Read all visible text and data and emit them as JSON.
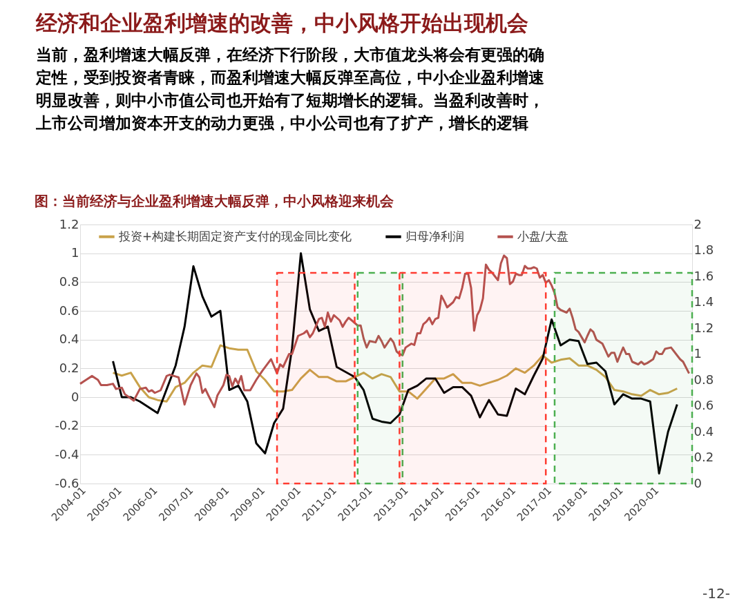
{
  "chart_data": {
    "type": "line",
    "title": "经济和企业盈利增速的改善，中小风格开始出现机会",
    "subtitle": "当前，盈利增速大幅反弹，在经济下行阶段，大市值龙头将会有更强的确定性，受到投资者青睐，而盈利增速大幅反弹至高位，中小企业盈利增速明显改善，则中小市值公司也开始有了短期增长的逻辑。当盈利改善时，上市公司增加资本开支的动力更强，中小公司也有了扩产，增长的逻辑",
    "annotations": [
      "图：当前经济与企业盈利增速大幅反弹，中小风格迎来机会",
      "-12-"
    ],
    "xlim": [
      "2004-01",
      "2021-02"
    ],
    "xticks": [
      "2004-01",
      "2005-01",
      "2006-01",
      "2007-01",
      "2008-01",
      "2009-01",
      "2010-01",
      "2011-01",
      "2012-01",
      "2013-01",
      "2014-01",
      "2015-01",
      "2016-01",
      "2017-01",
      "2018-01",
      "2019-01",
      "2020-01"
    ],
    "ylim": [
      -0.6,
      1.2
    ],
    "yticks": [
      -0.6,
      -0.4,
      -0.2,
      0,
      0.2,
      0.4,
      0.6,
      0.8,
      1,
      1.2
    ],
    "y2lim": [
      0,
      2
    ],
    "y2ticks": [
      0,
      0.2,
      0.4,
      0.6,
      0.8,
      1,
      1.2,
      1.4,
      1.6,
      1.8,
      2
    ],
    "grid": "y",
    "legend": "top",
    "bands": [
      {
        "axis": "x",
        "from": "2009-07",
        "to": "2011-09",
        "color": "#ff3b30"
      },
      {
        "axis": "x",
        "from": "2011-10",
        "to": "2013-01",
        "color": "#4caf50"
      },
      {
        "axis": "x",
        "from": "2012-12",
        "to": "2017-01",
        "color": "#ff3b30"
      },
      {
        "axis": "x",
        "from": "2017-04",
        "to": "2021-02",
        "color": "#4caf50"
      }
    ],
    "series": [
      {
        "name": "投资+构建长期固定资产支付的现金同比变化",
        "color": "#c9a24a",
        "x": [
          "2004-12",
          "2005-03",
          "2005-06",
          "2005-09",
          "2005-12",
          "2006-03",
          "2006-06",
          "2006-09",
          "2006-12",
          "2007-03",
          "2007-06",
          "2007-09",
          "2007-12",
          "2008-03",
          "2008-06",
          "2008-09",
          "2008-12",
          "2009-03",
          "2009-06",
          "2009-09",
          "2009-12",
          "2010-03",
          "2010-06",
          "2010-09",
          "2010-12",
          "2011-03",
          "2011-06",
          "2011-09",
          "2011-12",
          "2012-03",
          "2012-06",
          "2012-09",
          "2012-12",
          "2013-03",
          "2013-06",
          "2013-09",
          "2013-12",
          "2014-03",
          "2014-06",
          "2014-09",
          "2014-12",
          "2015-03",
          "2015-06",
          "2015-09",
          "2015-12",
          "2016-03",
          "2016-06",
          "2016-09",
          "2016-12",
          "2017-03",
          "2017-06",
          "2017-09",
          "2017-12",
          "2018-03",
          "2018-06",
          "2018-09",
          "2018-12",
          "2019-03",
          "2019-06",
          "2019-09",
          "2019-12",
          "2020-03",
          "2020-06",
          "2020-09"
        ],
        "values": [
          0.17,
          0.15,
          0.17,
          0.07,
          0.0,
          -0.02,
          -0.03,
          0.07,
          0.1,
          0.17,
          0.22,
          0.21,
          0.36,
          0.34,
          0.33,
          0.33,
          0.18,
          0.12,
          0.04,
          0.04,
          0.05,
          0.13,
          0.19,
          0.14,
          0.14,
          0.11,
          0.11,
          0.14,
          0.17,
          0.13,
          0.16,
          0.14,
          0.04,
          0.04,
          -0.01,
          0.06,
          0.13,
          0.13,
          0.16,
          0.1,
          0.1,
          0.08,
          0.1,
          0.12,
          0.15,
          0.2,
          0.17,
          0.22,
          0.29,
          0.24,
          0.26,
          0.27,
          0.22,
          0.22,
          0.19,
          0.14,
          0.05,
          0.04,
          0.02,
          0.01,
          0.05,
          0.02,
          0.03,
          0.06
        ]
      },
      {
        "name": "归母净利润",
        "color": "#000000",
        "x": [
          "2004-12",
          "2005-03",
          "2005-06",
          "2005-09",
          "2006-03",
          "2006-09",
          "2006-12",
          "2007-03",
          "2007-06",
          "2007-09",
          "2007-12",
          "2008-03",
          "2008-06",
          "2008-09",
          "2008-12",
          "2009-03",
          "2009-06",
          "2009-09",
          "2009-12",
          "2010-03",
          "2010-06",
          "2010-09",
          "2010-12",
          "2011-03",
          "2011-09",
          "2011-12",
          "2012-03",
          "2012-06",
          "2012-09",
          "2012-12",
          "2013-03",
          "2013-06",
          "2013-09",
          "2013-12",
          "2014-03",
          "2014-06",
          "2014-09",
          "2014-12",
          "2015-03",
          "2015-06",
          "2015-09",
          "2015-12",
          "2016-03",
          "2016-06",
          "2016-09",
          "2016-12",
          "2017-03",
          "2017-06",
          "2017-09",
          "2017-12",
          "2018-03",
          "2018-06",
          "2018-09",
          "2018-12",
          "2019-03",
          "2019-06",
          "2019-09",
          "2019-12",
          "2020-03",
          "2020-06",
          "2020-09"
        ],
        "values": [
          0.25,
          0.0,
          0.0,
          -0.03,
          -0.11,
          0.22,
          0.49,
          0.91,
          0.7,
          0.56,
          0.6,
          0.05,
          0.08,
          -0.03,
          -0.32,
          -0.39,
          -0.18,
          -0.08,
          0.34,
          1.0,
          0.61,
          0.46,
          0.49,
          0.21,
          0.14,
          0.05,
          -0.15,
          -0.17,
          -0.18,
          -0.12,
          0.05,
          0.08,
          0.13,
          0.13,
          0.03,
          0.07,
          0.07,
          0.01,
          -0.14,
          -0.02,
          -0.12,
          -0.13,
          0.06,
          0.02,
          0.15,
          0.27,
          0.54,
          0.36,
          0.4,
          0.39,
          0.23,
          0.24,
          0.18,
          -0.05,
          0.02,
          -0.01,
          -0.01,
          -0.03,
          -0.53,
          -0.24,
          -0.05
        ]
      },
      {
        "name": "小盘/大盘",
        "color": "#b5524f",
        "axis": "y2",
        "x": [
          "2004-01",
          "2004-03",
          "2004-05",
          "2004-07",
          "2004-08",
          "2004-10",
          "2004-12",
          "2005-01",
          "2005-03",
          "2005-04",
          "2005-07",
          "2005-09",
          "2005-11",
          "2005-12",
          "2006-01",
          "2006-02",
          "2006-04",
          "2006-06",
          "2006-07",
          "2006-10",
          "2006-12",
          "2007-02",
          "2007-04",
          "2007-05",
          "2007-06",
          "2007-07",
          "2007-08",
          "2007-10",
          "2007-11",
          "2008-01",
          "2008-02",
          "2008-03",
          "2008-04",
          "2008-05",
          "2008-06",
          "2008-07",
          "2008-08",
          "2008-10",
          "2008-12",
          "2009-02",
          "2009-04",
          "2009-05",
          "2009-07",
          "2009-08",
          "2009-09",
          "2009-11",
          "2009-12",
          "2010-02",
          "2010-04",
          "2010-05",
          "2010-06",
          "2010-07",
          "2010-09",
          "2010-10",
          "2010-11",
          "2010-12",
          "2011-01",
          "2011-02",
          "2011-04",
          "2011-05",
          "2011-06",
          "2011-07",
          "2011-09",
          "2011-10",
          "2011-11",
          "2011-12",
          "2012-01",
          "2012-02",
          "2012-04",
          "2012-05",
          "2012-06",
          "2012-07",
          "2012-09",
          "2012-10",
          "2012-11",
          "2012-12",
          "2013-01",
          "2013-02",
          "2013-04",
          "2013-05",
          "2013-06",
          "2013-07",
          "2013-08",
          "2013-09",
          "2013-10",
          "2013-11",
          "2013-12",
          "2014-01",
          "2014-02",
          "2014-03",
          "2014-04",
          "2014-06",
          "2014-07",
          "2014-08",
          "2014-09",
          "2014-10",
          "2014-11",
          "2014-12",
          "2015-01",
          "2015-02",
          "2015-03",
          "2015-04",
          "2015-05",
          "2015-06",
          "2015-07",
          "2015-08",
          "2015-09",
          "2015-10",
          "2015-11",
          "2015-12",
          "2016-01",
          "2016-02",
          "2016-03",
          "2016-04",
          "2016-05",
          "2016-06",
          "2016-07",
          "2016-08",
          "2016-09",
          "2016-10",
          "2016-11",
          "2016-12",
          "2017-01",
          "2017-02",
          "2017-03",
          "2017-04",
          "2017-05",
          "2017-06",
          "2017-08",
          "2017-09",
          "2017-10",
          "2017-11",
          "2017-12",
          "2018-02",
          "2018-03",
          "2018-04",
          "2018-05",
          "2018-06",
          "2018-08",
          "2018-09",
          "2018-10",
          "2018-11",
          "2018-12",
          "2019-01",
          "2019-02",
          "2019-03",
          "2019-04",
          "2019-05",
          "2019-06",
          "2019-08",
          "2019-09",
          "2019-10",
          "2019-11",
          "2020-01",
          "2020-02",
          "2020-03",
          "2020-04",
          "2020-05",
          "2020-07",
          "2020-08",
          "2020-10",
          "2020-11",
          "2021-01"
        ],
        "values": [
          0.77,
          0.8,
          0.83,
          0.8,
          0.76,
          0.76,
          0.77,
          0.73,
          0.74,
          0.69,
          0.64,
          0.73,
          0.74,
          0.71,
          0.72,
          0.7,
          0.72,
          0.83,
          0.84,
          0.82,
          0.61,
          0.76,
          0.85,
          0.82,
          0.7,
          0.73,
          0.68,
          0.59,
          0.68,
          0.76,
          0.84,
          0.83,
          0.75,
          0.81,
          0.77,
          0.83,
          0.72,
          0.72,
          0.8,
          0.87,
          0.93,
          0.96,
          0.85,
          0.92,
          0.9,
          1.0,
          1.0,
          1.14,
          1.16,
          1.18,
          1.13,
          1.16,
          1.27,
          1.28,
          1.21,
          1.32,
          1.25,
          1.3,
          1.26,
          1.21,
          1.25,
          1.28,
          1.24,
          1.22,
          1.22,
          1.12,
          1.05,
          1.1,
          1.09,
          1.14,
          1.1,
          1.05,
          1.12,
          1.09,
          1.02,
          1.0,
          0.99,
          1.05,
          1.08,
          1.07,
          1.16,
          1.16,
          1.23,
          1.25,
          1.28,
          1.23,
          1.27,
          1.28,
          1.45,
          1.41,
          1.36,
          1.4,
          1.44,
          1.43,
          1.51,
          1.62,
          1.62,
          1.51,
          1.18,
          1.3,
          1.34,
          1.43,
          1.69,
          1.65,
          1.63,
          1.6,
          1.57,
          1.7,
          1.76,
          1.74,
          1.54,
          1.56,
          1.62,
          1.61,
          1.61,
          1.68,
          1.66,
          1.66,
          1.67,
          1.66,
          1.59,
          1.61,
          1.55,
          1.57,
          1.53,
          1.47,
          1.36,
          1.34,
          1.32,
          1.35,
          1.28,
          1.19,
          1.17,
          1.09,
          1.14,
          1.19,
          1.17,
          1.11,
          1.08,
          1.03,
          0.98,
          1.01,
          1.01,
          0.94,
          1.0,
          1.05,
          1.0,
          1.0,
          0.94,
          0.92,
          0.94,
          0.92,
          0.93,
          0.96,
          1.02,
          1.0,
          1.0,
          1.04,
          1.05,
          1.02,
          0.96,
          0.94,
          0.85
        ]
      }
    ]
  }
}
